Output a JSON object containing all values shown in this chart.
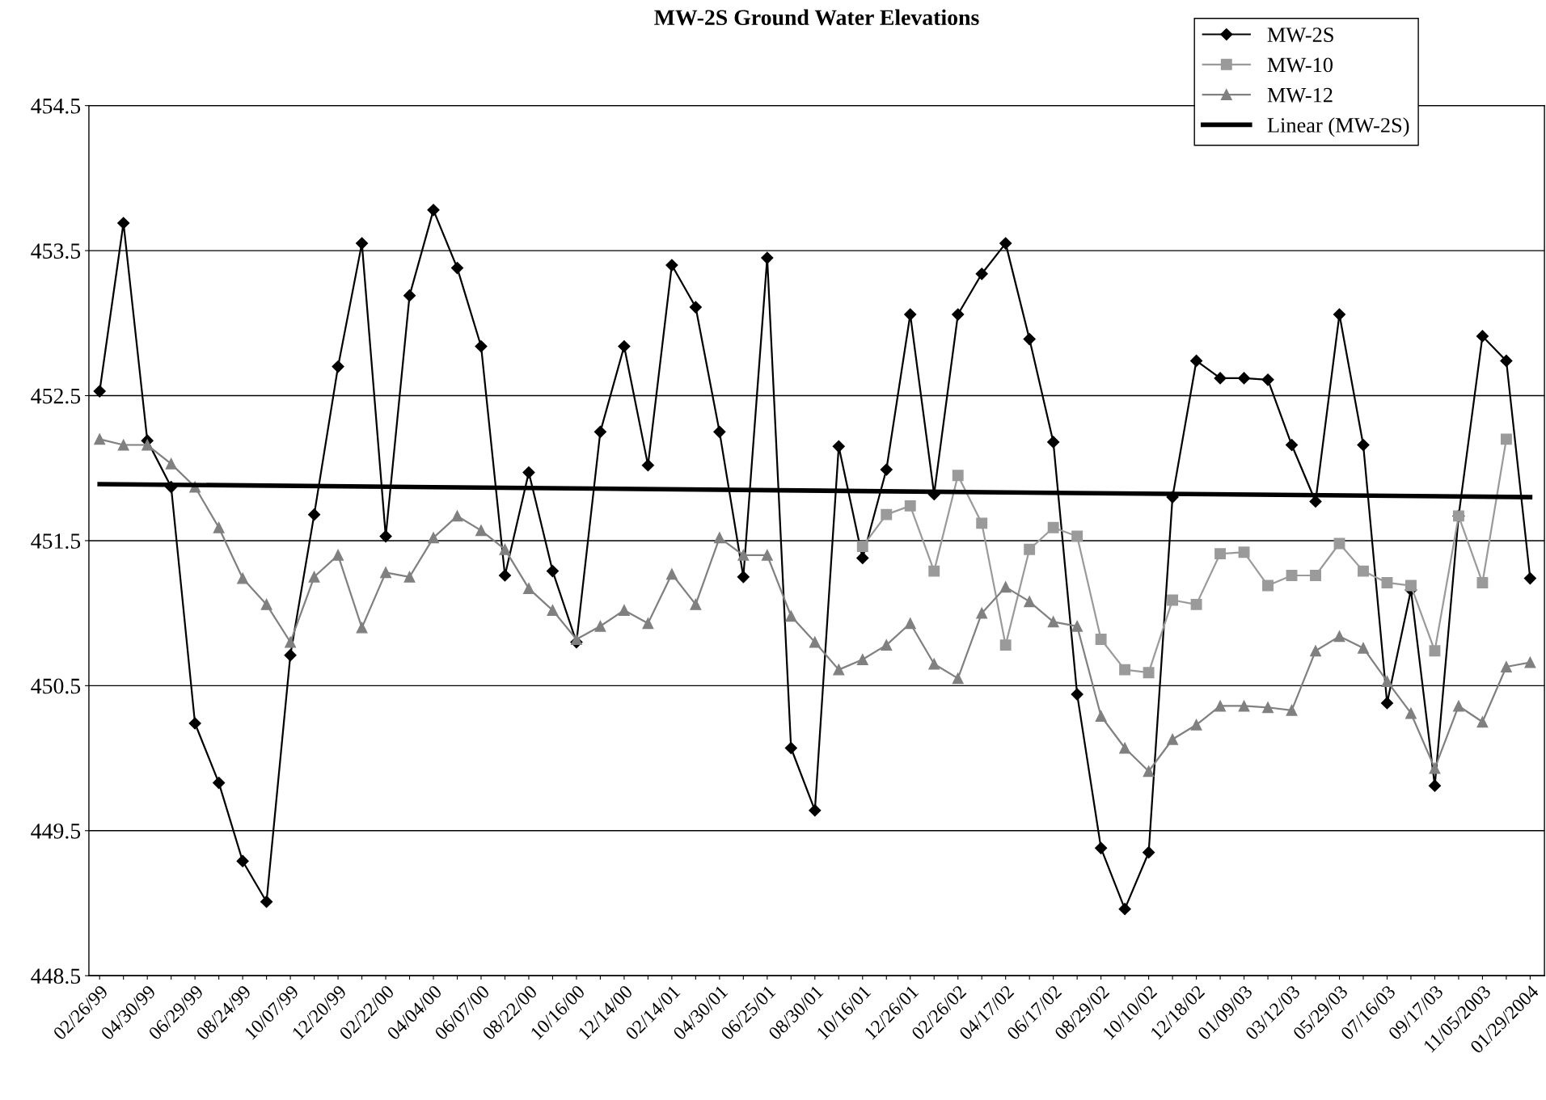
{
  "chart_data": {
    "type": "line",
    "title": "MW-2S Ground Water Elevations",
    "categories": [
      "02/26/99",
      null,
      "04/30/99",
      null,
      "06/29/99",
      null,
      "08/24/99",
      null,
      "10/07/99",
      null,
      "12/20/99",
      null,
      "02/22/00",
      null,
      "04/04/00",
      null,
      "06/07/00",
      null,
      "08/22/00",
      null,
      "10/16/00",
      null,
      "12/14/00",
      null,
      "02/14/01",
      null,
      "04/30/01",
      null,
      "06/25/01",
      null,
      "08/30/01",
      null,
      "10/16/01",
      null,
      "12/26/01",
      null,
      "02/26/02",
      null,
      "04/17/02",
      null,
      "06/17/02",
      null,
      "08/29/02",
      null,
      "10/10/02",
      null,
      "12/18/02",
      null,
      "01/09/03",
      null,
      "03/12/03",
      null,
      "05/29/03",
      null,
      "07/16/03",
      null,
      "09/17/03",
      null,
      "11/05/2003",
      null,
      "01/29/2004"
    ],
    "series": [
      {
        "name": "MW-2S",
        "color": "#000000",
        "marker": "diamond",
        "values": [
          452.53,
          453.69,
          452.19,
          451.87,
          450.24,
          449.83,
          449.29,
          449.01,
          450.71,
          451.68,
          452.7,
          453.55,
          451.53,
          453.19,
          453.78,
          453.38,
          452.84,
          451.26,
          451.97,
          451.29,
          450.8,
          452.25,
          452.84,
          452.02,
          453.4,
          453.11,
          452.25,
          451.25,
          453.45,
          450.07,
          449.64,
          452.15,
          451.38,
          451.99,
          453.06,
          451.82,
          453.06,
          453.34,
          453.55,
          452.89,
          452.18,
          450.44,
          449.38,
          448.96,
          449.35,
          451.8,
          452.74,
          452.62,
          452.62,
          452.61,
          452.16,
          451.77,
          453.06,
          452.16,
          450.38,
          451.16,
          449.81,
          451.67,
          452.91,
          452.74,
          451.24
        ]
      },
      {
        "name": "MW-10",
        "color": "#9a9a9a",
        "marker": "square",
        "values": [
          null,
          null,
          null,
          null,
          null,
          null,
          null,
          null,
          null,
          null,
          null,
          null,
          null,
          null,
          null,
          null,
          null,
          null,
          null,
          null,
          null,
          null,
          null,
          null,
          null,
          null,
          null,
          null,
          null,
          null,
          null,
          null,
          451.46,
          451.68,
          451.74,
          451.29,
          451.95,
          451.62,
          450.78,
          451.44,
          451.59,
          451.53,
          450.82,
          450.61,
          450.59,
          451.09,
          451.06,
          451.41,
          451.42,
          451.19,
          451.26,
          451.26,
          451.48,
          451.29,
          451.21,
          451.19,
          450.74,
          451.67,
          451.21,
          452.2,
          null
        ]
      },
      {
        "name": "MW-12",
        "color": "#808080",
        "marker": "triangle",
        "values": [
          452.2,
          452.16,
          452.16,
          452.03,
          451.87,
          451.59,
          451.24,
          451.06,
          450.8,
          451.25,
          451.4,
          450.9,
          451.28,
          451.25,
          451.52,
          451.67,
          451.57,
          451.44,
          451.17,
          451.02,
          450.82,
          450.91,
          451.02,
          450.93,
          451.27,
          451.06,
          451.52,
          451.4,
          451.4,
          450.98,
          450.8,
          450.61,
          450.68,
          450.78,
          450.93,
          450.65,
          450.55,
          451.0,
          451.18,
          451.08,
          450.94,
          450.91,
          450.29,
          450.07,
          449.91,
          450.13,
          450.23,
          450.36,
          450.36,
          450.35,
          450.33,
          450.74,
          450.84,
          450.76,
          450.53,
          450.31,
          449.93,
          450.36,
          450.25,
          450.63,
          450.66
        ]
      },
      {
        "name": "Linear (MW-2S)",
        "color": "#000000",
        "type": "line",
        "marker": "none",
        "values": [
          451.89,
          null,
          null,
          null,
          null,
          null,
          null,
          null,
          null,
          null,
          null,
          null,
          null,
          null,
          null,
          null,
          null,
          null,
          null,
          null,
          null,
          null,
          null,
          null,
          null,
          null,
          null,
          null,
          null,
          null,
          null,
          null,
          null,
          null,
          null,
          null,
          null,
          null,
          null,
          null,
          null,
          null,
          null,
          null,
          null,
          null,
          null,
          null,
          null,
          null,
          null,
          null,
          null,
          null,
          null,
          null,
          null,
          null,
          null,
          null,
          451.8
        ]
      }
    ],
    "ylim": [
      448.5,
      454.5
    ],
    "yticks": [
      448.5,
      449.5,
      450.5,
      451.5,
      452.5,
      453.5,
      454.5
    ],
    "grid": "y",
    "legend": "top right",
    "line_style": "solid"
  }
}
